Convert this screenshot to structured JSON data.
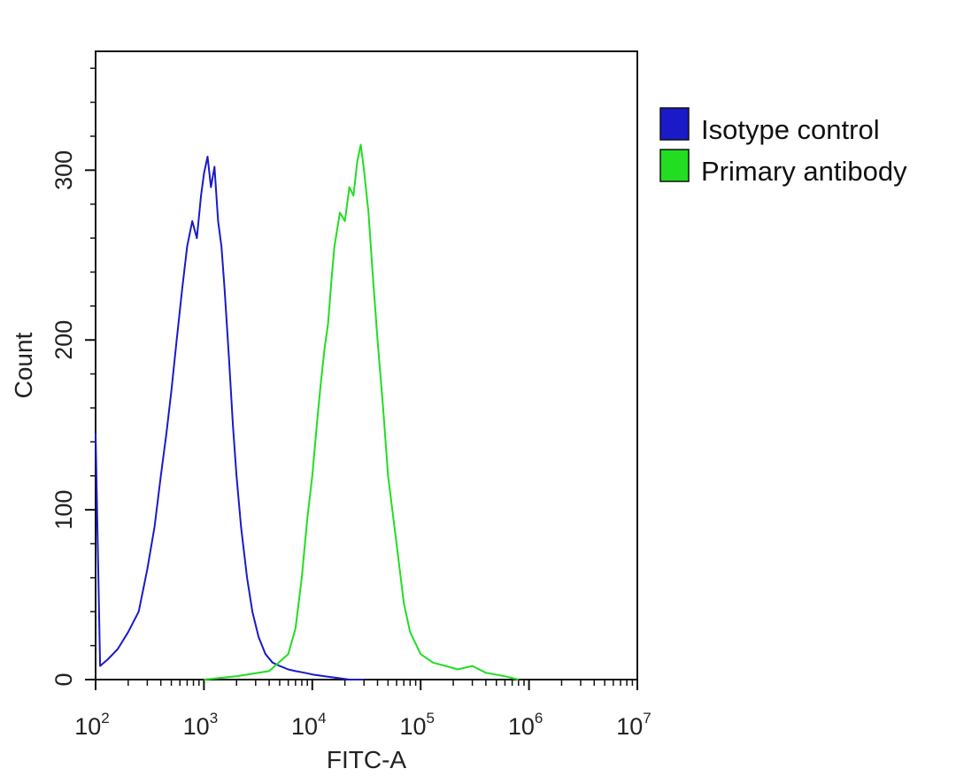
{
  "chart_data": {
    "type": "line",
    "title": "",
    "xlabel": "FITC-A",
    "ylabel": "Count",
    "x_scale": "log",
    "xlim": [
      100,
      10000000
    ],
    "ylim": [
      0,
      370
    ],
    "x_ticks": [
      {
        "base": "10",
        "exp": "2",
        "value": 100
      },
      {
        "base": "10",
        "exp": "3",
        "value": 1000
      },
      {
        "base": "10",
        "exp": "4",
        "value": 10000
      },
      {
        "base": "10",
        "exp": "5",
        "value": 100000
      },
      {
        "base": "10",
        "exp": "6",
        "value": 1000000
      },
      {
        "base": "10",
        "exp": "7",
        "value": 10000000
      }
    ],
    "y_ticks": [
      {
        "label": "0",
        "value": 0
      },
      {
        "label": "100",
        "value": 100
      },
      {
        "label": "200",
        "value": 200
      },
      {
        "label": "300",
        "value": 300
      }
    ],
    "grid": false,
    "legend_position": "right, outside plot",
    "series": [
      {
        "name": "Isotype control",
        "color": "#1a1ac8",
        "x": [
          100,
          110,
          130,
          160,
          200,
          250,
          300,
          350,
          400,
          450,
          500,
          560,
          630,
          700,
          780,
          860,
          940,
          1000,
          1080,
          1160,
          1250,
          1350,
          1450,
          1550,
          1700,
          1850,
          2000,
          2200,
          2500,
          2800,
          3200,
          3700,
          4300,
          5000,
          6000,
          7000,
          8500,
          10000,
          13000,
          17000,
          22000,
          30000
        ],
        "y": [
          145,
          8,
          12,
          18,
          28,
          40,
          65,
          90,
          120,
          145,
          170,
          200,
          230,
          255,
          270,
          260,
          285,
          298,
          308,
          290,
          302,
          270,
          255,
          230,
          190,
          150,
          120,
          90,
          60,
          40,
          25,
          15,
          10,
          8,
          6,
          5,
          4,
          3,
          2,
          1,
          0,
          0
        ]
      },
      {
        "name": "Primary antibody",
        "color": "#22dd22",
        "x": [
          1000,
          2000,
          4000,
          6000,
          7000,
          8000,
          9000,
          10000,
          11000,
          12000,
          13000,
          14000,
          15000,
          16000,
          18000,
          20000,
          22000,
          24000,
          26000,
          28000,
          30000,
          33000,
          36000,
          40000,
          45000,
          50000,
          60000,
          70000,
          80000,
          100000,
          130000,
          170000,
          220000,
          300000,
          400000,
          600000,
          800000
        ],
        "y": [
          0,
          2,
          5,
          15,
          30,
          60,
          95,
          120,
          150,
          175,
          195,
          210,
          235,
          255,
          275,
          270,
          290,
          285,
          305,
          315,
          300,
          275,
          240,
          200,
          160,
          120,
          80,
          45,
          28,
          15,
          10,
          8,
          6,
          8,
          4,
          2,
          0
        ]
      }
    ]
  }
}
